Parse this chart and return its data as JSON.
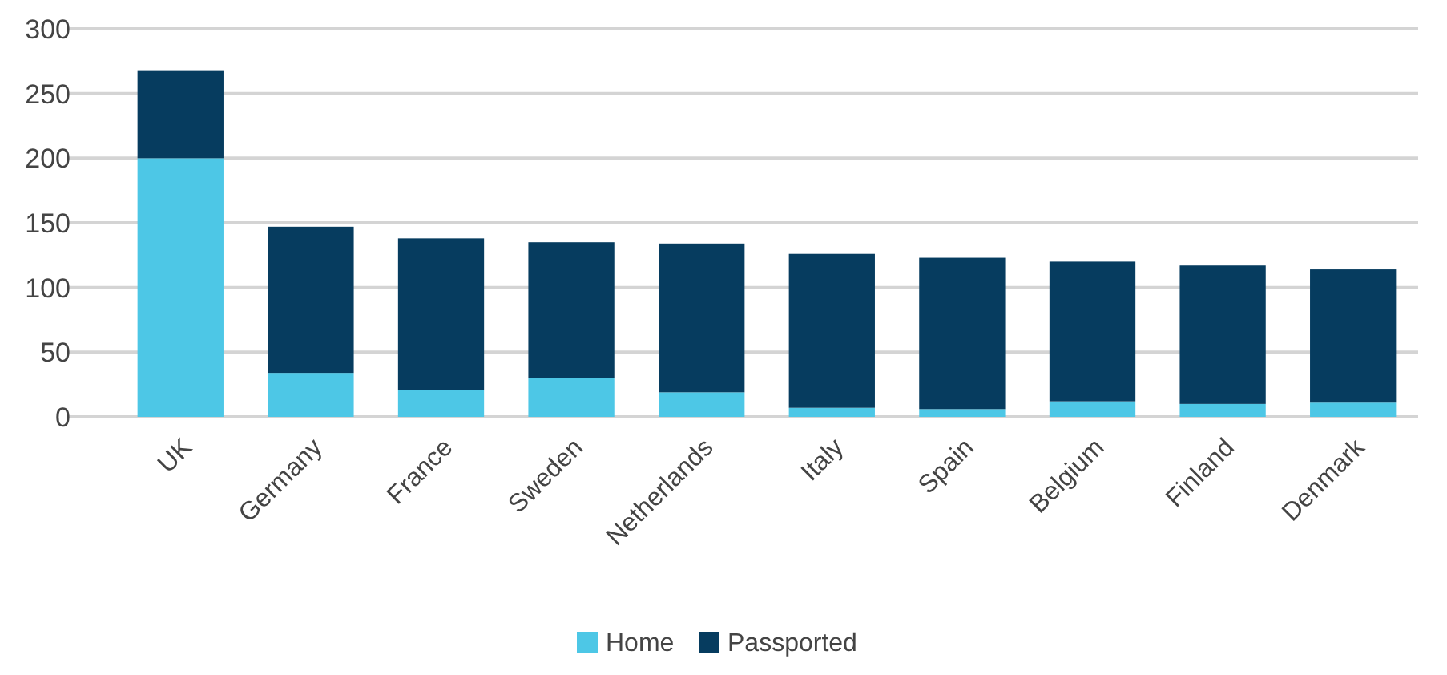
{
  "chart_data": {
    "type": "bar",
    "stacked": true,
    "categories": [
      "UK",
      "Germany",
      "France",
      "Sweden",
      "Netherlands",
      "Italy",
      "Spain",
      "Belgium",
      "Finland",
      "Denmark"
    ],
    "series": [
      {
        "name": "Home",
        "color": "#4dc7e6",
        "values": [
          200,
          34,
          21,
          30,
          19,
          7,
          6,
          12,
          10,
          11
        ]
      },
      {
        "name": "Passported",
        "color": "#063c5f",
        "values": [
          68,
          113,
          117,
          105,
          115,
          119,
          117,
          108,
          107,
          103
        ]
      }
    ],
    "ylim": [
      0,
      300
    ],
    "yticks": [
      0,
      50,
      100,
      150,
      200,
      250,
      300
    ],
    "grid": "y",
    "legend": "bottom"
  }
}
